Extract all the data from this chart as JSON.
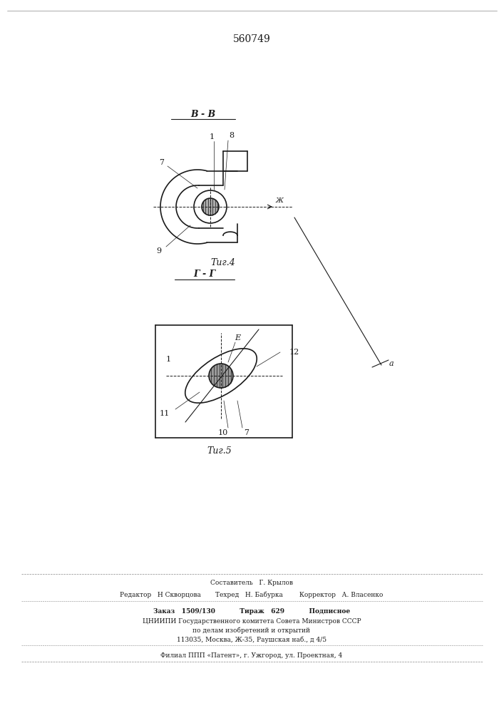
{
  "patent_number": "560749",
  "bg_color": "#ffffff",
  "line_color": "#1a1a1a",
  "fig4_label": "Τиг.4",
  "fig5_label": "Τиг.5",
  "section_bb": "B - B",
  "section_gg": "Г - Г",
  "footer_lines": [
    "Составитель   Г. Крылов",
    "Редактор   Н Скворцова       Техред   Н. Бабурка        Корректор   А. Власенко",
    "Заказ   1509/130           Тираж   629           Подписное",
    "ЦНИИПИ Государственного комитета Совета Министров СССР",
    "по делам изобретений и открытий",
    "113035, Москва, Ж-35, Раушская наб., д 4/5",
    "Филиал ППП «Патент», г. Ужгород, ул. Проектная, 4"
  ]
}
